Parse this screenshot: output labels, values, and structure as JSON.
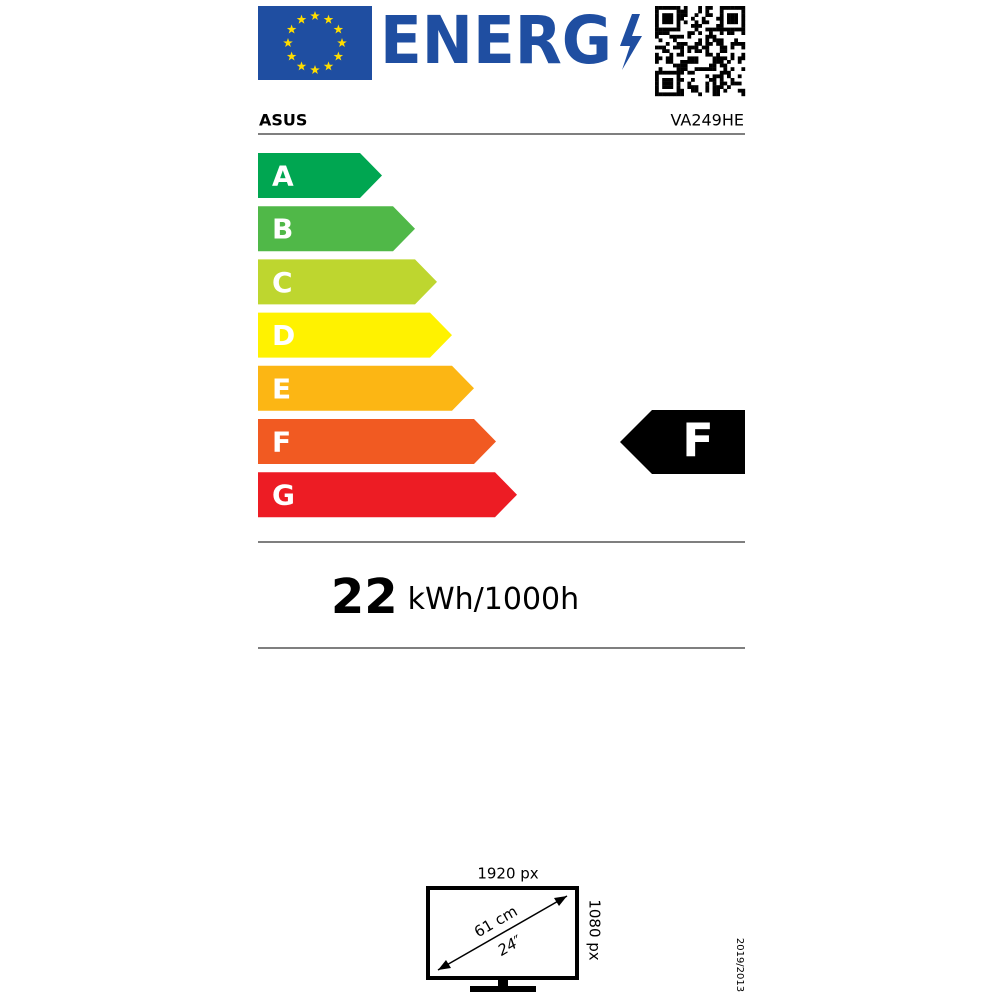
{
  "header": {
    "logo_text": "ENERG",
    "supplier": "ASUS",
    "model": "VA249HE"
  },
  "scale": {
    "classes": [
      "A",
      "B",
      "C",
      "D",
      "E",
      "F",
      "G"
    ],
    "colors": [
      "#00a651",
      "#50b848",
      "#bed62f",
      "#fff200",
      "#fcb614",
      "#f15a22",
      "#ed1c24"
    ]
  },
  "rating": "F",
  "energy": {
    "value": 22,
    "unit": "kWh/1000h"
  },
  "screen": {
    "width_px": "1920 px",
    "height_px": "1080 px",
    "diagonal_cm": "61 cm",
    "diagonal_in": "24″"
  },
  "regulation": "2019/2013"
}
